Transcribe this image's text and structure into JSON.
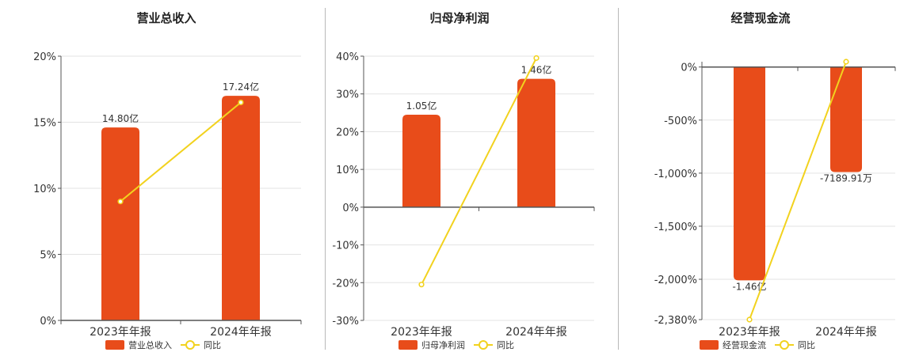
{
  "colors": {
    "bar": "#e84c1a",
    "line": "#f2d21e",
    "grid": "#e3e3e3",
    "axis": "#555555"
  },
  "chart_data": [
    {
      "type": "bar",
      "title": "营业总收入",
      "categories": [
        "2023年年报",
        "2024年年报"
      ],
      "bar_labels": [
        "14.80亿",
        "17.24亿"
      ],
      "line_values": [
        9.0,
        16.5
      ],
      "bar_heights_in_axis_units": [
        14.6,
        17.0
      ],
      "ylim": [
        0,
        20
      ],
      "yticks": [
        0,
        5,
        10,
        15,
        20
      ],
      "ytick_labels": [
        "0%",
        "5%",
        "10%",
        "15%",
        "20%"
      ],
      "legend": [
        "营业总收入",
        "同比"
      ]
    },
    {
      "type": "bar",
      "title": "归母净利润",
      "categories": [
        "2023年年报",
        "2024年年报"
      ],
      "bar_labels": [
        "1.05亿",
        "1.46亿"
      ],
      "line_values": [
        -20.5,
        39.5
      ],
      "bar_heights_in_axis_units": [
        24.5,
        34.0
      ],
      "ylim": [
        -30,
        40
      ],
      "yticks": [
        -30,
        -20,
        -10,
        0,
        10,
        20,
        30,
        40
      ],
      "ytick_labels": [
        "-30%",
        "-20%",
        "-10%",
        "0%",
        "10%",
        "20%",
        "30%",
        "40%"
      ],
      "legend": [
        "归母净利润",
        "同比"
      ]
    },
    {
      "type": "bar",
      "title": "经营现金流",
      "categories": [
        "2023年年报",
        "2024年年报"
      ],
      "bar_labels": [
        "-1.46亿",
        "-7189.91万"
      ],
      "line_values": [
        -2380,
        50
      ],
      "bar_heights_in_axis_units": [
        -2010,
        -990
      ],
      "ylim": [
        -2380,
        50
      ],
      "yticks": [
        -2380,
        -2000,
        -1500,
        -1000,
        -500,
        0
      ],
      "ytick_labels": [
        "-2,380%",
        "-2,000%",
        "-1,500%",
        "-1,000%",
        "-500%",
        "0%"
      ],
      "legend": [
        "经营现金流",
        "同比"
      ]
    }
  ]
}
